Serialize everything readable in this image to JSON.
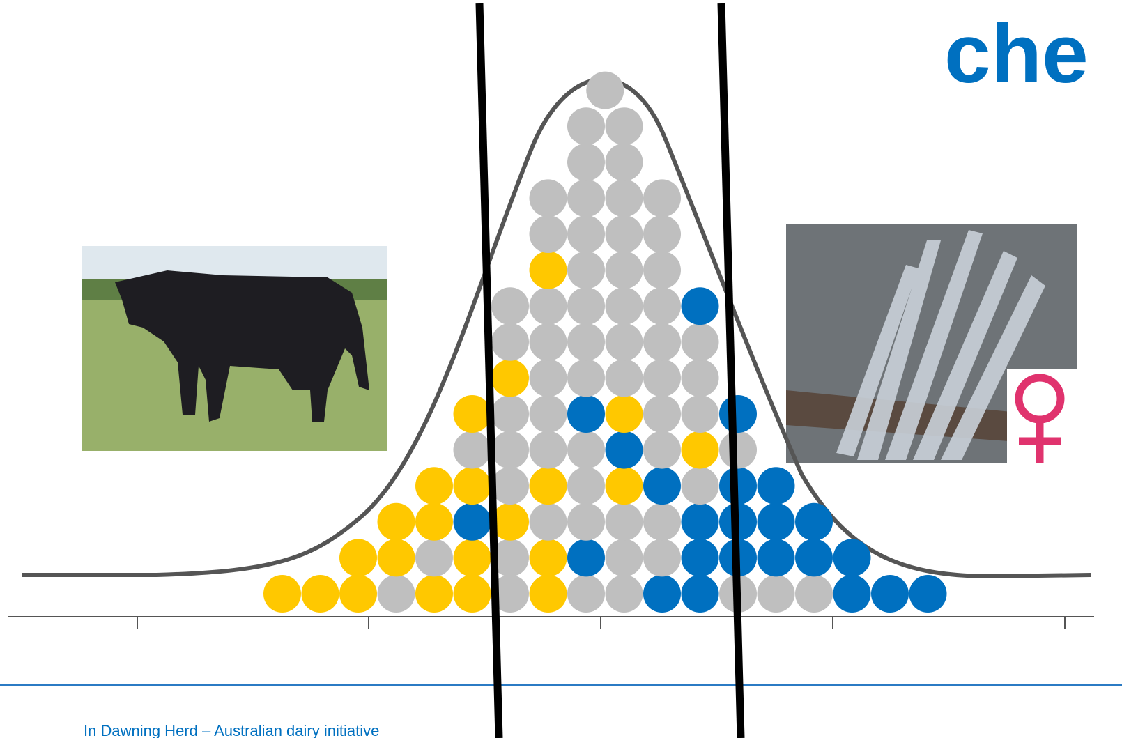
{
  "title": "che",
  "footer": "In Dawning Herd – Australian dairy initiative"
}
